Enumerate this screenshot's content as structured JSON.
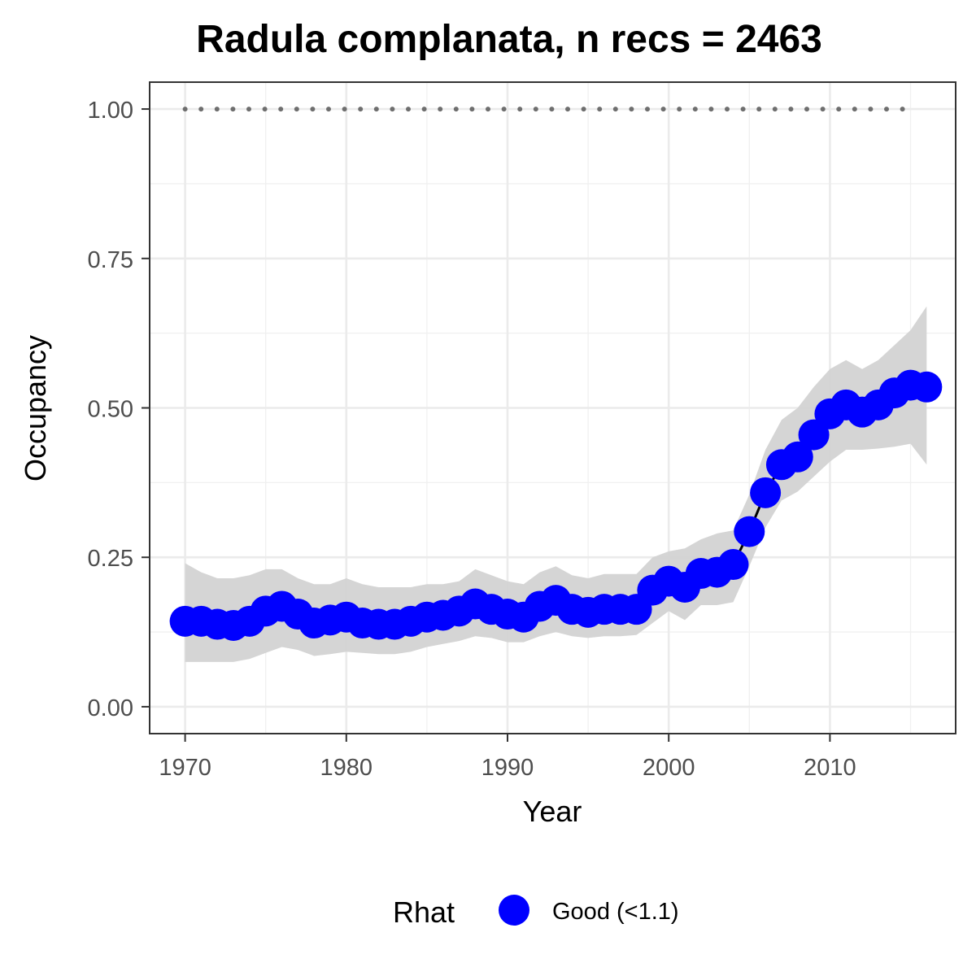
{
  "chart_data": {
    "type": "line",
    "title": "Radula complanata, n recs = 2463",
    "xlabel": "Year",
    "ylabel": "Occupancy",
    "xlim": [
      1967.8,
      2017.8
    ],
    "ylim": [
      -0.045,
      1.045
    ],
    "x_ticks": [
      1970,
      1980,
      1990,
      2000,
      2010
    ],
    "x_tick_labels": [
      "1970",
      "1980",
      "1990",
      "2000",
      "2010"
    ],
    "y_ticks": [
      0.0,
      0.25,
      0.5,
      0.75,
      1.0
    ],
    "y_tick_labels": [
      "0.00",
      "0.25",
      "0.50",
      "0.75",
      "1.00"
    ],
    "grid": true,
    "legend": {
      "position": "bottom",
      "title": "Rhat",
      "entries": [
        {
          "label": "Good (<1.1)",
          "color": "#0000ff"
        }
      ]
    },
    "colors": {
      "points": "#0000ff",
      "line": "#000000",
      "ribbon": "#d3d3d3",
      "reference": "#6e6e6e"
    },
    "series": [
      {
        "x": [
          1970,
          1971,
          1972,
          1973,
          1974,
          1975,
          1976,
          1977,
          1978,
          1979,
          1980,
          1981,
          1982,
          1983,
          1984,
          1985,
          1986,
          1987,
          1988,
          1989,
          1990,
          1991,
          1992,
          1993,
          1994,
          1995,
          1996,
          1997,
          1998,
          1999,
          2000,
          2001,
          2002,
          2003,
          2004,
          2005,
          2006,
          2007,
          2008,
          2009,
          2010,
          2011,
          2012,
          2013,
          2014,
          2015,
          2016
        ],
        "y": [
          0.143,
          0.143,
          0.138,
          0.136,
          0.143,
          0.16,
          0.168,
          0.155,
          0.14,
          0.145,
          0.15,
          0.14,
          0.138,
          0.138,
          0.143,
          0.15,
          0.153,
          0.16,
          0.172,
          0.163,
          0.155,
          0.15,
          0.168,
          0.178,
          0.163,
          0.158,
          0.163,
          0.163,
          0.163,
          0.195,
          0.21,
          0.2,
          0.223,
          0.225,
          0.238,
          0.293,
          0.358,
          0.405,
          0.418,
          0.455,
          0.49,
          0.505,
          0.493,
          0.505,
          0.525,
          0.538,
          0.535
        ],
        "lower": [
          0.075,
          0.075,
          0.075,
          0.075,
          0.08,
          0.09,
          0.1,
          0.095,
          0.085,
          0.088,
          0.092,
          0.09,
          0.088,
          0.088,
          0.092,
          0.1,
          0.105,
          0.11,
          0.118,
          0.115,
          0.108,
          0.108,
          0.118,
          0.125,
          0.118,
          0.115,
          0.118,
          0.118,
          0.12,
          0.14,
          0.16,
          0.145,
          0.17,
          0.17,
          0.175,
          0.235,
          0.3,
          0.345,
          0.36,
          0.385,
          0.41,
          0.43,
          0.43,
          0.432,
          0.435,
          0.44,
          0.405
        ],
        "upper": [
          0.24,
          0.225,
          0.215,
          0.215,
          0.22,
          0.23,
          0.23,
          0.215,
          0.205,
          0.205,
          0.215,
          0.205,
          0.2,
          0.2,
          0.2,
          0.205,
          0.205,
          0.21,
          0.23,
          0.22,
          0.21,
          0.205,
          0.225,
          0.235,
          0.22,
          0.215,
          0.222,
          0.222,
          0.222,
          0.25,
          0.26,
          0.265,
          0.28,
          0.29,
          0.295,
          0.355,
          0.43,
          0.48,
          0.5,
          0.535,
          0.565,
          0.58,
          0.565,
          0.58,
          0.605,
          0.63,
          0.67
        ]
      }
    ],
    "reference_line": {
      "y": 1.0,
      "x_range": [
        1970,
        2015
      ]
    }
  }
}
